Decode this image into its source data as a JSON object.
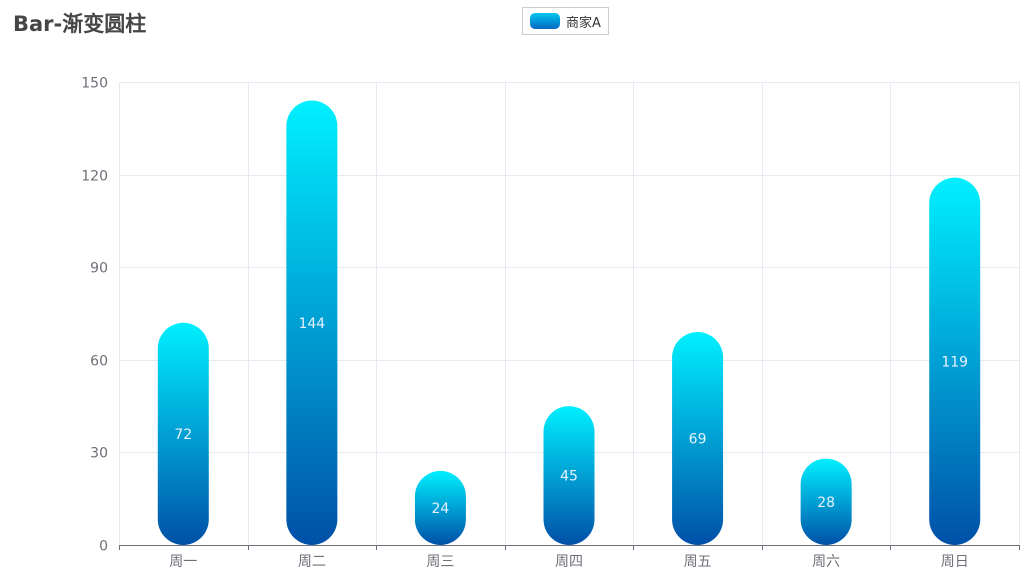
{
  "chart_data": {
    "type": "bar",
    "title": "Bar-渐变圆柱",
    "categories": [
      "周一",
      "周二",
      "周三",
      "周四",
      "周五",
      "周六",
      "周日"
    ],
    "series": [
      {
        "name": "商家A",
        "values": [
          72,
          144,
          24,
          45,
          69,
          28,
          119
        ]
      }
    ],
    "ylim": [
      0,
      150
    ],
    "yticks": [
      0,
      30,
      60,
      90,
      120,
      150
    ],
    "grid": true,
    "legend": "top-center",
    "colors": {
      "gradient_top": "#00f0ff",
      "gradient_bottom": "#0050a8"
    }
  }
}
